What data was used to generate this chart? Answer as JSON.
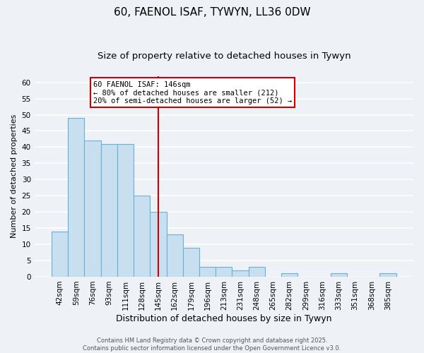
{
  "title": "60, FAENOL ISAF, TYWYN, LL36 0DW",
  "subtitle": "Size of property relative to detached houses in Tywyn",
  "xlabel": "Distribution of detached houses by size in Tywyn",
  "ylabel": "Number of detached properties",
  "bar_labels": [
    "42sqm",
    "59sqm",
    "76sqm",
    "93sqm",
    "111sqm",
    "128sqm",
    "145sqm",
    "162sqm",
    "179sqm",
    "196sqm",
    "213sqm",
    "231sqm",
    "248sqm",
    "265sqm",
    "282sqm",
    "299sqm",
    "316sqm",
    "333sqm",
    "351sqm",
    "368sqm",
    "385sqm"
  ],
  "bar_values": [
    14,
    49,
    42,
    41,
    41,
    25,
    20,
    13,
    9,
    3,
    3,
    2,
    3,
    0,
    1,
    0,
    0,
    1,
    0,
    0,
    1
  ],
  "bar_color": "#c8dff0",
  "bar_edge_color": "#6aafd6",
  "vline_x": 6,
  "vline_color": "#cc0000",
  "annotation_title": "60 FAENOL ISAF: 146sqm",
  "annotation_line1": "← 80% of detached houses are smaller (212)",
  "annotation_line2": "20% of semi-detached houses are larger (52) →",
  "annotation_box_color": "#ffffff",
  "annotation_box_edge_color": "#cc0000",
  "ylim": [
    0,
    62
  ],
  "yticks": [
    0,
    5,
    10,
    15,
    20,
    25,
    30,
    35,
    40,
    45,
    50,
    55,
    60
  ],
  "footer1": "Contains HM Land Registry data © Crown copyright and database right 2025.",
  "footer2": "Contains public sector information licensed under the Open Government Licence v3.0.",
  "background_color": "#eef2f7",
  "grid_color": "#ffffff",
  "title_fontsize": 11,
  "subtitle_fontsize": 9.5,
  "xlabel_fontsize": 9,
  "ylabel_fontsize": 8,
  "tick_fontsize": 7.5,
  "footer_fontsize": 6
}
